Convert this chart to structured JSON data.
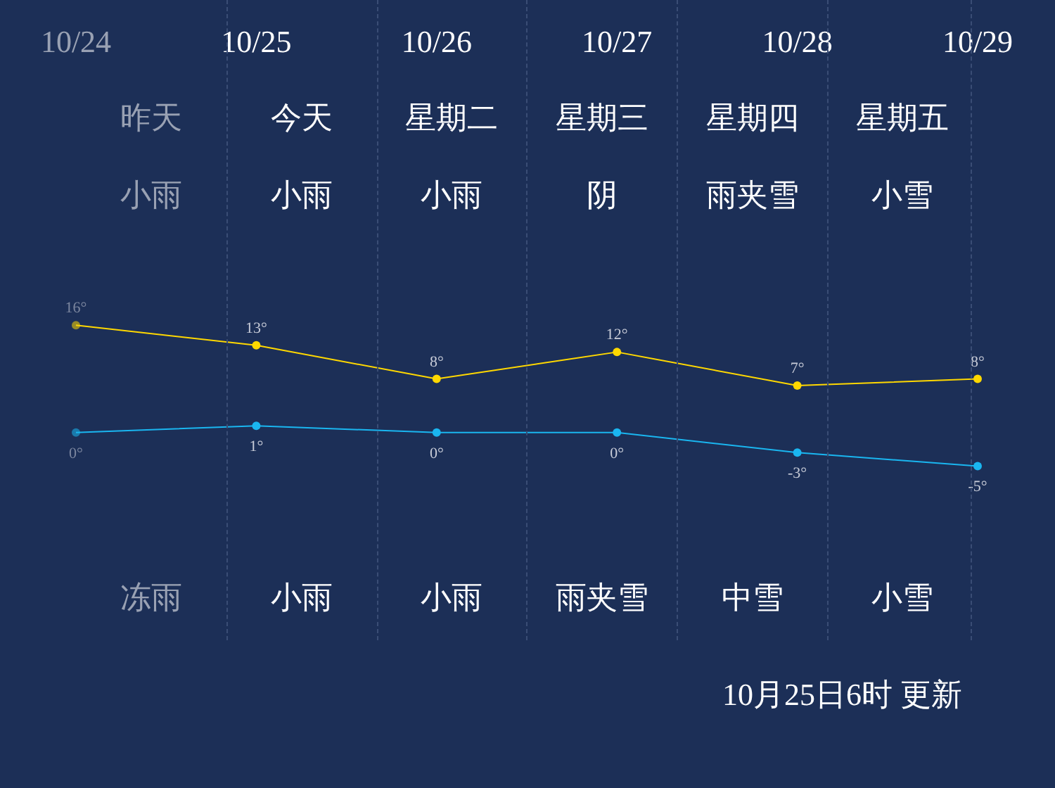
{
  "chart_data": {
    "type": "line",
    "categories": [
      "10/24",
      "10/25",
      "10/26",
      "10/27",
      "10/28",
      "10/29"
    ],
    "series": [
      {
        "color": "#ffd800",
        "values": [
          16,
          13,
          8,
          12,
          7,
          8
        ],
        "value_labels": [
          "16°",
          "13°",
          "8°",
          "12°",
          "7°",
          "8°"
        ]
      },
      {
        "color": "#1ab6f0",
        "values": [
          0,
          1,
          0,
          0,
          -3,
          -5
        ],
        "value_labels": [
          "0°",
          "1°",
          "0°",
          "0°",
          "-3°",
          "-5°"
        ]
      }
    ],
    "marker": "circle",
    "annotations": [
      "昨天",
      "今天",
      "星期二",
      "星期三",
      "星期四",
      "星期五",
      "小雨",
      "小雨",
      "小雨",
      "阴",
      "雨夹雪",
      "小雪",
      "冻雨",
      "小雨",
      "小雨",
      "雨夹雪",
      "中雪",
      "小雪",
      "10月25日6时 更新"
    ]
  }
}
